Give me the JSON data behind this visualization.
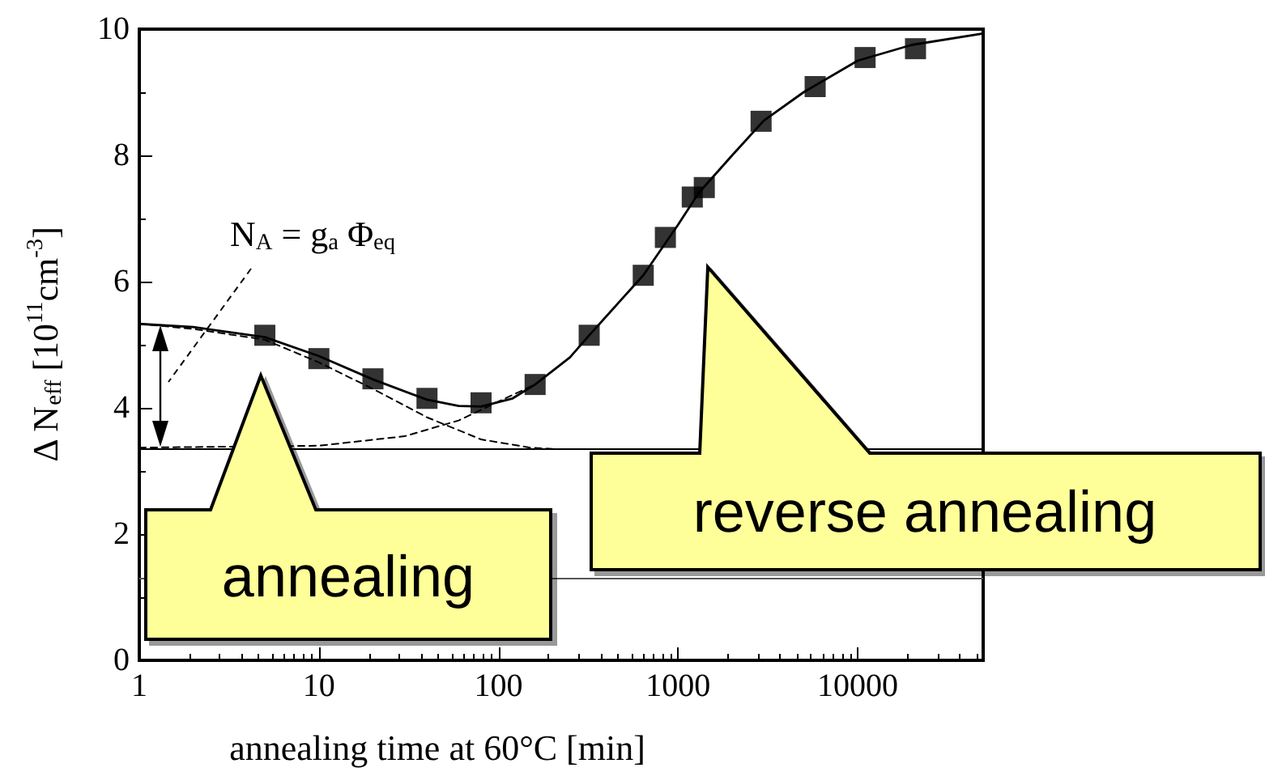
{
  "chart_data": {
    "type": "scatter",
    "xlabel": "annealing time at 60°C [min]",
    "ylabel": "Δ N$_{eff}$ [10$^{11}$cm$^{-3}$]",
    "log": "x",
    "xlim": [
      1,
      50000
    ],
    "xticks": [
      1,
      10,
      100,
      1000,
      10000
    ],
    "ylim": [
      0,
      10
    ],
    "yticks": [
      0,
      2,
      4,
      6,
      8,
      10
    ],
    "grid": false,
    "annotations": [
      "N$_{A}$ = g$_{a}$ Φ$_{eq}$",
      "annealing",
      "reverse annealing"
    ],
    "ref_lines": [
      {
        "axis": "y",
        "value": 3.35,
        "color": "#000000",
        "line_style": "solid"
      },
      {
        "axis": "y",
        "value": 1.3,
        "color": "#555555",
        "line_style": "solid"
      }
    ],
    "series": [
      {
        "color": "#000000",
        "marker": "square",
        "x": [
          5,
          10,
          20,
          40,
          80,
          160,
          320,
          640,
          850,
          1200,
          1400,
          2900,
          5800,
          11000,
          21000
        ],
        "values": [
          5.15,
          4.78,
          4.46,
          4.15,
          4.08,
          4.37,
          5.15,
          6.1,
          6.7,
          7.34,
          7.49,
          8.54,
          9.09,
          9.55,
          9.69
        ]
      },
      {
        "type": "line",
        "color": "#000000",
        "line_style": "solid",
        "marker": "none",
        "x": [
          1,
          2,
          5,
          10,
          20,
          40,
          60,
          80,
          120,
          160,
          250,
          320,
          640,
          1000,
          1300,
          2000,
          3000,
          5000,
          10000,
          20000,
          50000
        ],
        "values": [
          5.33,
          5.28,
          5.12,
          4.82,
          4.45,
          4.13,
          4.03,
          4.02,
          4.15,
          4.37,
          4.8,
          5.15,
          6.1,
          6.9,
          7.4,
          8.0,
          8.55,
          9.0,
          9.5,
          9.75,
          9.93
        ]
      },
      {
        "type": "line",
        "color": "#000000",
        "line_style": "dashed",
        "marker": "none",
        "x": [
          1,
          2,
          5,
          10,
          20,
          40,
          80,
          150,
          200
        ],
        "values": [
          5.33,
          5.25,
          5.08,
          4.72,
          4.3,
          3.85,
          3.5,
          3.37,
          3.35
        ]
      },
      {
        "type": "line",
        "color": "#000000",
        "line_style": "dashed",
        "marker": "none",
        "x": [
          1,
          10,
          30,
          60,
          100,
          160
        ],
        "values": [
          3.37,
          3.4,
          3.55,
          3.8,
          4.1,
          4.37
        ]
      }
    ]
  }
}
